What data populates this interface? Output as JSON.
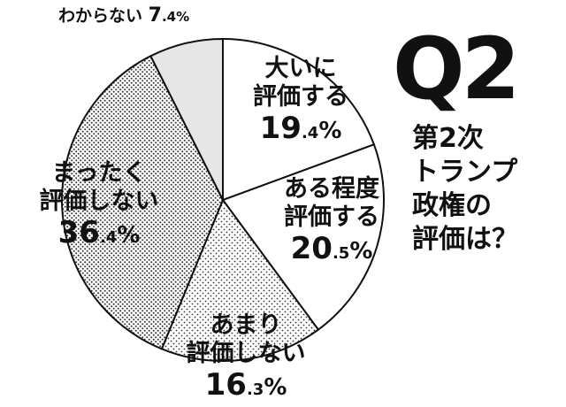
{
  "header": {
    "number": "Q2",
    "question_lines": [
      "第2次",
      "トランプ",
      "政権の",
      "評価は？"
    ]
  },
  "chart_data": {
    "type": "pie",
    "start": "top",
    "direction": "clockwise",
    "slices": [
      {
        "label_lines": [
          "大いに",
          "評価する"
        ],
        "value": 19.4,
        "int": "19",
        "dec": ".4",
        "unit": "%",
        "fill": "white"
      },
      {
        "label_lines": [
          "ある程度",
          "評価する"
        ],
        "value": 20.5,
        "int": "20",
        "dec": ".5",
        "unit": "%",
        "fill": "white"
      },
      {
        "label_lines": [
          "あまり",
          "評価しない"
        ],
        "value": 16.3,
        "int": "16",
        "dec": ".3",
        "unit": "%",
        "fill": "dots-sparse"
      },
      {
        "label_lines": [
          "まったく",
          "評価しない"
        ],
        "value": 36.4,
        "int": "36",
        "dec": ".4",
        "unit": "%",
        "fill": "dots-dense"
      },
      {
        "label_lines": [
          "わからない"
        ],
        "value": 7.4,
        "int": "7",
        "dec": ".4",
        "unit": "%",
        "fill": "gray"
      }
    ],
    "colors": {
      "outline": "#111111",
      "white": "#ffffff",
      "gray": "#e6e6e6",
      "dots": "#333333"
    }
  }
}
